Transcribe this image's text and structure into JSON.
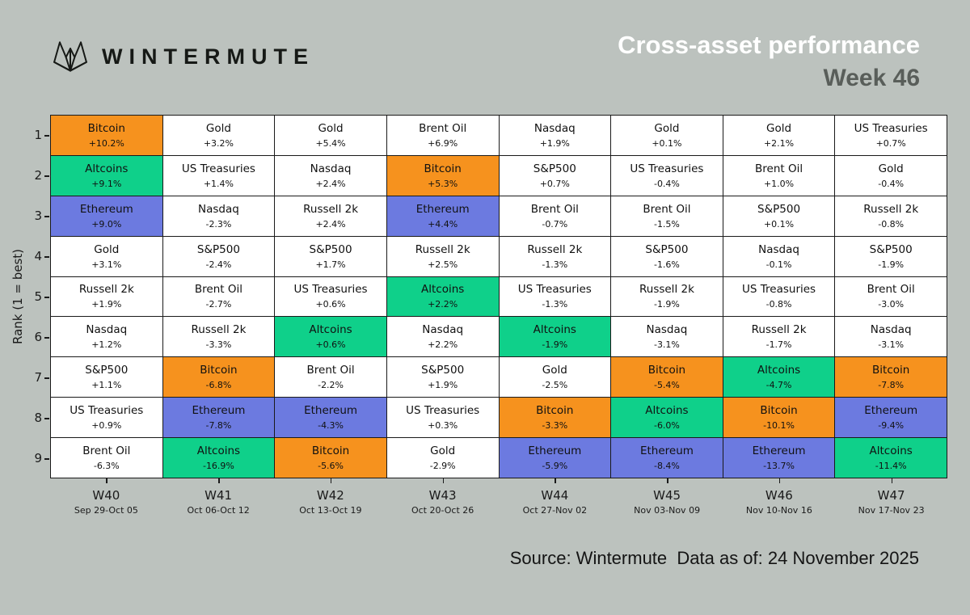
{
  "header": {
    "brand": "WINTERMUTE",
    "title": "Cross-asset performance",
    "subtitle": "Week 46"
  },
  "footer": {
    "source": "Source: Wintermute  Data as of: 24 November 2025"
  },
  "colors": {
    "background": "#BCC2BE",
    "grid": "#1A1A1A",
    "cell_default": "#FFFFFF",
    "bitcoin": "#F6921E",
    "altcoins": "#0FD08A",
    "ethereum": "#6C7AE0",
    "title": "#FFFFFF",
    "subtitle": "#595E5A"
  },
  "chart_data": {
    "type": "table",
    "ylabel": "Rank (1 = best)",
    "ranks": [
      1,
      2,
      3,
      4,
      5,
      6,
      7,
      8,
      9
    ],
    "highlighted_assets": [
      "Bitcoin",
      "Altcoins",
      "Ethereum"
    ],
    "columns": [
      {
        "week": "W40",
        "dates": "Sep 29-Oct 05",
        "cells": [
          {
            "asset": "Bitcoin",
            "value": "+10.2%"
          },
          {
            "asset": "Altcoins",
            "value": "+9.1%"
          },
          {
            "asset": "Ethereum",
            "value": "+9.0%"
          },
          {
            "asset": "Gold",
            "value": "+3.1%"
          },
          {
            "asset": "Russell 2k",
            "value": "+1.9%"
          },
          {
            "asset": "Nasdaq",
            "value": "+1.2%"
          },
          {
            "asset": "S&P500",
            "value": "+1.1%"
          },
          {
            "asset": "US Treasuries",
            "value": "+0.9%"
          },
          {
            "asset": "Brent Oil",
            "value": "-6.3%"
          }
        ]
      },
      {
        "week": "W41",
        "dates": "Oct 06-Oct 12",
        "cells": [
          {
            "asset": "Gold",
            "value": "+3.2%"
          },
          {
            "asset": "US Treasuries",
            "value": "+1.4%"
          },
          {
            "asset": "Nasdaq",
            "value": "-2.3%"
          },
          {
            "asset": "S&P500",
            "value": "-2.4%"
          },
          {
            "asset": "Brent Oil",
            "value": "-2.7%"
          },
          {
            "asset": "Russell 2k",
            "value": "-3.3%"
          },
          {
            "asset": "Bitcoin",
            "value": "-6.8%"
          },
          {
            "asset": "Ethereum",
            "value": "-7.8%"
          },
          {
            "asset": "Altcoins",
            "value": "-16.9%"
          }
        ]
      },
      {
        "week": "W42",
        "dates": "Oct 13-Oct 19",
        "cells": [
          {
            "asset": "Gold",
            "value": "+5.4%"
          },
          {
            "asset": "Nasdaq",
            "value": "+2.4%"
          },
          {
            "asset": "Russell 2k",
            "value": "+2.4%"
          },
          {
            "asset": "S&P500",
            "value": "+1.7%"
          },
          {
            "asset": "US Treasuries",
            "value": "+0.6%"
          },
          {
            "asset": "Altcoins",
            "value": "+0.6%"
          },
          {
            "asset": "Brent Oil",
            "value": "-2.2%"
          },
          {
            "asset": "Ethereum",
            "value": "-4.3%"
          },
          {
            "asset": "Bitcoin",
            "value": "-5.6%"
          }
        ]
      },
      {
        "week": "W43",
        "dates": "Oct 20-Oct 26",
        "cells": [
          {
            "asset": "Brent Oil",
            "value": "+6.9%"
          },
          {
            "asset": "Bitcoin",
            "value": "+5.3%"
          },
          {
            "asset": "Ethereum",
            "value": "+4.4%"
          },
          {
            "asset": "Russell 2k",
            "value": "+2.5%"
          },
          {
            "asset": "Altcoins",
            "value": "+2.2%"
          },
          {
            "asset": "Nasdaq",
            "value": "+2.2%"
          },
          {
            "asset": "S&P500",
            "value": "+1.9%"
          },
          {
            "asset": "US Treasuries",
            "value": "+0.3%"
          },
          {
            "asset": "Gold",
            "value": "-2.9%"
          }
        ]
      },
      {
        "week": "W44",
        "dates": "Oct 27-Nov 02",
        "cells": [
          {
            "asset": "Nasdaq",
            "value": "+1.9%"
          },
          {
            "asset": "S&P500",
            "value": "+0.7%"
          },
          {
            "asset": "Brent Oil",
            "value": "-0.7%"
          },
          {
            "asset": "Russell 2k",
            "value": "-1.3%"
          },
          {
            "asset": "US Treasuries",
            "value": "-1.3%"
          },
          {
            "asset": "Altcoins",
            "value": "-1.9%"
          },
          {
            "asset": "Gold",
            "value": "-2.5%"
          },
          {
            "asset": "Bitcoin",
            "value": "-3.3%"
          },
          {
            "asset": "Ethereum",
            "value": "-5.9%"
          }
        ]
      },
      {
        "week": "W45",
        "dates": "Nov 03-Nov 09",
        "cells": [
          {
            "asset": "Gold",
            "value": "+0.1%"
          },
          {
            "asset": "US Treasuries",
            "value": "-0.4%"
          },
          {
            "asset": "Brent Oil",
            "value": "-1.5%"
          },
          {
            "asset": "S&P500",
            "value": "-1.6%"
          },
          {
            "asset": "Russell 2k",
            "value": "-1.9%"
          },
          {
            "asset": "Nasdaq",
            "value": "-3.1%"
          },
          {
            "asset": "Bitcoin",
            "value": "-5.4%"
          },
          {
            "asset": "Altcoins",
            "value": "-6.0%"
          },
          {
            "asset": "Ethereum",
            "value": "-8.4%"
          }
        ]
      },
      {
        "week": "W46",
        "dates": "Nov 10-Nov 16",
        "cells": [
          {
            "asset": "Gold",
            "value": "+2.1%"
          },
          {
            "asset": "Brent Oil",
            "value": "+1.0%"
          },
          {
            "asset": "S&P500",
            "value": "+0.1%"
          },
          {
            "asset": "Nasdaq",
            "value": "-0.1%"
          },
          {
            "asset": "US Treasuries",
            "value": "-0.8%"
          },
          {
            "asset": "Russell 2k",
            "value": "-1.7%"
          },
          {
            "asset": "Altcoins",
            "value": "-4.7%"
          },
          {
            "asset": "Bitcoin",
            "value": "-10.1%"
          },
          {
            "asset": "Ethereum",
            "value": "-13.7%"
          }
        ]
      },
      {
        "week": "W47",
        "dates": "Nov 17-Nov 23",
        "cells": [
          {
            "asset": "US Treasuries",
            "value": "+0.7%"
          },
          {
            "asset": "Gold",
            "value": "-0.4%"
          },
          {
            "asset": "Russell 2k",
            "value": "-0.8%"
          },
          {
            "asset": "S&P500",
            "value": "-1.9%"
          },
          {
            "asset": "Brent Oil",
            "value": "-3.0%"
          },
          {
            "asset": "Nasdaq",
            "value": "-3.1%"
          },
          {
            "asset": "Bitcoin",
            "value": "-7.8%"
          },
          {
            "asset": "Ethereum",
            "value": "-9.4%"
          },
          {
            "asset": "Altcoins",
            "value": "-11.4%"
          }
        ]
      }
    ]
  }
}
